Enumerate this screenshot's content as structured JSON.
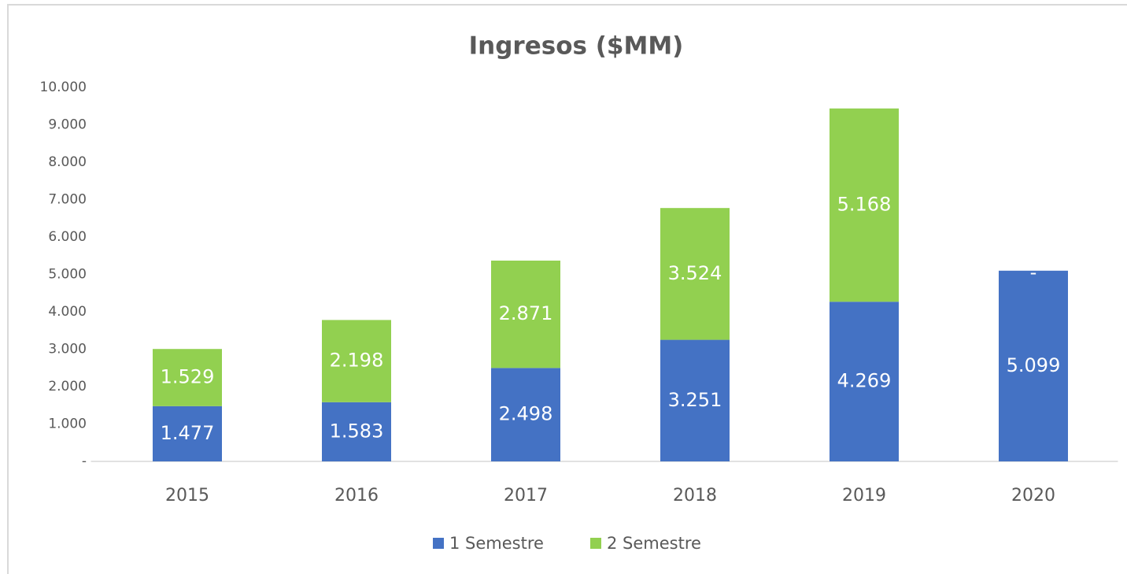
{
  "chart_data": {
    "type": "stacked_bar",
    "title": "Ingresos ($MM)",
    "categories": [
      "2015",
      "2016",
      "2017",
      "2018",
      "2019",
      "2020"
    ],
    "series": [
      {
        "name": "1 Semestre",
        "color": "#4472c4",
        "values": [
          1477,
          1583,
          2498,
          3251,
          4269,
          5099
        ],
        "value_labels": [
          "1.477",
          "1.583",
          "2.498",
          "3.251",
          "4.269",
          "5.099"
        ]
      },
      {
        "name": "2 Semestre",
        "color": "#92d050",
        "values": [
          1529,
          2198,
          2871,
          3524,
          5168,
          0
        ],
        "value_labels": [
          "1.529",
          "2.198",
          "2.871",
          "3.524",
          "5.168",
          "-"
        ]
      }
    ],
    "ylim": [
      0,
      10000
    ],
    "yticks": [
      {
        "value": 0,
        "label": "-"
      },
      {
        "value": 1000,
        "label": "1.000"
      },
      {
        "value": 2000,
        "label": "2.000"
      },
      {
        "value": 3000,
        "label": "3.000"
      },
      {
        "value": 4000,
        "label": "4.000"
      },
      {
        "value": 5000,
        "label": "5.000"
      },
      {
        "value": 6000,
        "label": "6.000"
      },
      {
        "value": 7000,
        "label": "7.000"
      },
      {
        "value": 8000,
        "label": "8.000"
      },
      {
        "value": 9000,
        "label": "9.000"
      },
      {
        "value": 10000,
        "label": "10.000"
      }
    ],
    "grid": false,
    "legend": "bottom"
  }
}
